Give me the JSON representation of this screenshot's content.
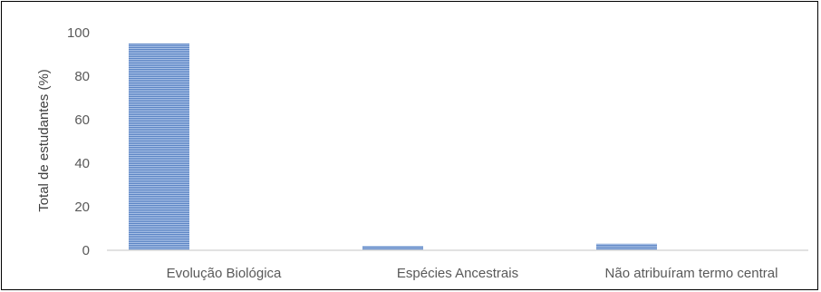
{
  "chart_data": {
    "type": "bar",
    "categories": [
      "Evolução Biológica",
      "Espécies Ancestrais",
      "Não atribuíram termo central"
    ],
    "values": [
      95,
      2,
      3
    ],
    "title": "",
    "xlabel": "",
    "ylabel": "Total de estudantes (%)",
    "ylim": [
      0,
      100
    ],
    "yticks": [
      "0",
      "20",
      "40",
      "60",
      "80",
      "100"
    ],
    "grid": false,
    "legend": "none",
    "bar_color": "#5B84C4",
    "bar_stripe_color": "#A9C1E6"
  }
}
